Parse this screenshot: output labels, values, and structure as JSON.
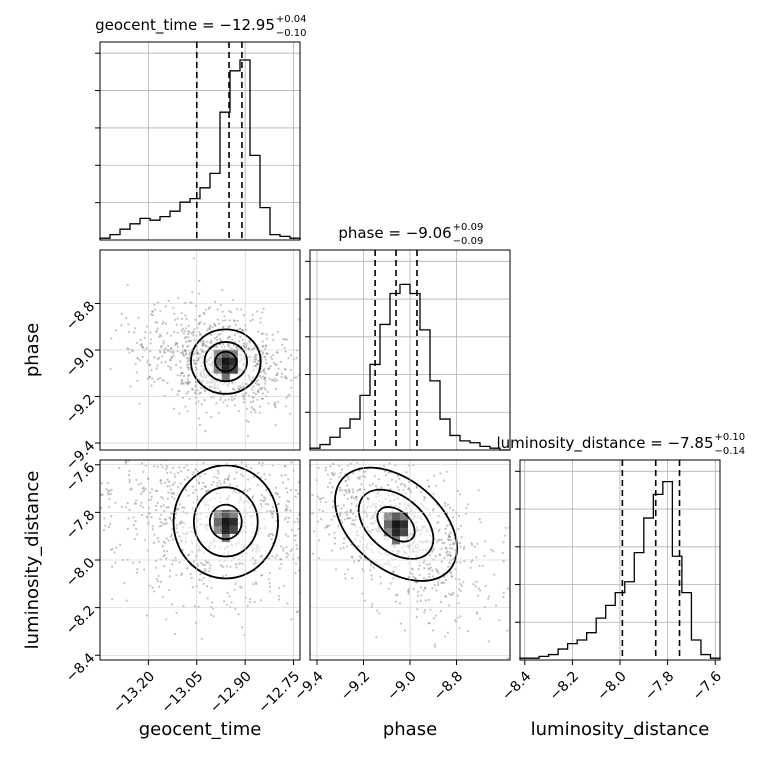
{
  "chart_data": {
    "type": "corner",
    "parameters": [
      {
        "name": "geocent_time",
        "median": -12.95,
        "plus": "0.04",
        "minus": "0.10",
        "median_label": "−12.95",
        "plus_label": "+0.04",
        "minus_label": "−0.10",
        "quantiles": [
          -13.05,
          -12.95,
          -12.91
        ],
        "range": [
          -13.35,
          -12.73
        ],
        "ticks": [
          -13.2,
          -13.05,
          -12.9,
          -12.75
        ],
        "tick_labels": [
          "−13.20",
          "−13.05",
          "−12.90",
          "−12.75"
        ],
        "hist": [
          0.01,
          0.03,
          0.06,
          0.09,
          0.12,
          0.11,
          0.13,
          0.16,
          0.21,
          0.23,
          0.29,
          0.37,
          0.71,
          0.94,
          1.0,
          0.47,
          0.18,
          0.03,
          0.02,
          0.01
        ]
      },
      {
        "name": "phase",
        "median": -9.06,
        "plus": "0.09",
        "minus": "0.09",
        "median_label": "−9.06",
        "plus_label": "+0.09",
        "minus_label": "−0.09",
        "quantiles": [
          -9.15,
          -9.06,
          -8.97
        ],
        "range": [
          -9.43,
          -8.57
        ],
        "ticks": [
          -9.4,
          -9.2,
          -9.0,
          -8.8
        ],
        "tick_labels": [
          "−9.4",
          "−9.2",
          "−9.0",
          "−8.8"
        ],
        "hist": [
          0.01,
          0.03,
          0.07,
          0.12,
          0.17,
          0.3,
          0.47,
          0.69,
          0.86,
          0.91,
          0.86,
          0.66,
          0.38,
          0.17,
          0.08,
          0.05,
          0.04,
          0.02,
          0.01,
          0.0
        ]
      },
      {
        "name": "luminosity_distance",
        "median": -7.85,
        "plus": "0.10",
        "minus": "0.14",
        "median_label": "−7.85",
        "plus_label": "+0.10",
        "minus_label": "−0.14",
        "quantiles": [
          -7.99,
          -7.85,
          -7.75
        ],
        "range": [
          -8.42,
          -7.58
        ],
        "ticks": [
          -8.4,
          -8.2,
          -8.0,
          -7.8,
          -7.6
        ],
        "tick_labels": [
          "−8.4",
          "−8.2",
          "−8.0",
          "−7.8",
          "−7.6"
        ],
        "hist": [
          0.01,
          0.01,
          0.02,
          0.03,
          0.06,
          0.09,
          0.11,
          0.15,
          0.23,
          0.3,
          0.37,
          0.43,
          0.59,
          0.78,
          0.91,
          0.98,
          0.57,
          0.37,
          0.11,
          0.03,
          0.01
        ]
      }
    ],
    "y_ticks": {
      "phase": [
        -9.4,
        -9.2,
        -9.0,
        -8.8
      ],
      "phase_labels": [
        "−9.4",
        "−9.2",
        "−9.0",
        "−8.8"
      ],
      "luminosity_distance": [
        -8.4,
        -8.2,
        -8.0,
        -7.8,
        -7.6
      ],
      "luminosity_distance_labels": [
        "−8.4",
        "−8.2",
        "−8.0",
        "−7.8",
        "−7.6"
      ]
    },
    "pairs": [
      {
        "x": "geocent_time",
        "y": "phase",
        "peak": [
          -12.96,
          -9.05
        ],
        "spread": [
          0.06,
          0.07
        ]
      },
      {
        "x": "geocent_time",
        "y": "luminosity_distance",
        "peak": [
          -12.96,
          -7.84
        ],
        "spread": [
          0.09,
          0.12
        ]
      },
      {
        "x": "phase",
        "y": "luminosity_distance",
        "peak": [
          -9.06,
          -7.85
        ],
        "spread": [
          0.12,
          0.13
        ]
      }
    ],
    "grid": true
  }
}
